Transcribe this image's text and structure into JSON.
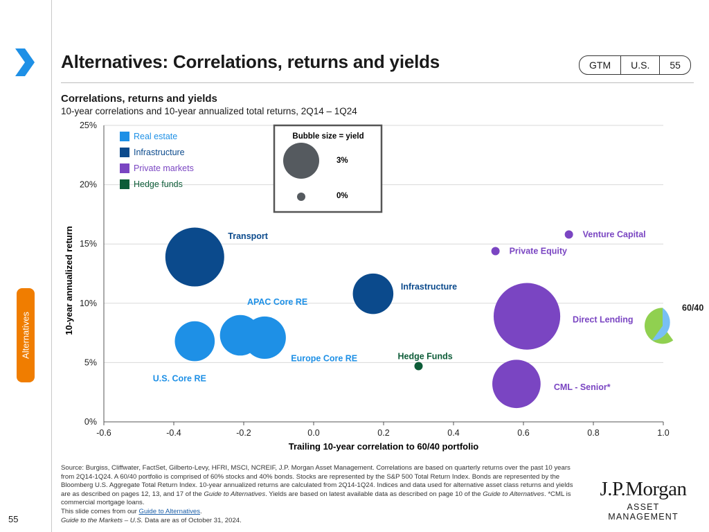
{
  "header": {
    "title": "Alternatives: Correlations, returns and yields",
    "tags": [
      "GTM",
      "U.S.",
      "55"
    ]
  },
  "side_tab": "Alternatives",
  "page_number": "55",
  "logo": {
    "line1": "J.P.Morgan",
    "line2": "ASSET MANAGEMENT"
  },
  "footnote": {
    "text": "Source: Burgiss, Cliffwater, FactSet, Gilberto-Levy, HFRI, MSCI, NCREIF, J.P. Morgan Asset Management. Correlations are based on quarterly returns over the past 10 years from 2Q14-1Q24. A 60/40 portfolio is comprised of 60% stocks and 40% bonds. Stocks are represented by the S&P 500 Total Return Index. Bonds are represented by the Bloomberg U.S. Aggregate Total Return Index. 10-year annualized returns are calculated from 2Q14-1Q24. Indices and data used for alternative asset class returns and yields are as described on pages 12, 13, and 17 of the ",
    "guide_italic": "Guide to Alternatives",
    "text2": ". Yields are based on latest available data as described on page 10 of the ",
    "guide_italic2": "Guide to Alternatives",
    "text3": ". *CML is commercial mortgage loans.",
    "line2_pre": "This slide comes from our ",
    "link": "Guide to Alternatives",
    "line2_post": ".",
    "line3_italic": "Guide to the Markets – U.S.",
    "line3_rest": " Data are as of October 31, 2024."
  },
  "colors": {
    "real_estate": "#1e90e6",
    "infrastructure": "#0b4a8c",
    "private_markets": "#7a45c2",
    "hedge_funds": "#0d5c38",
    "accent_orange": "#f07d00",
    "chevron_blue": "#1e90e6",
    "pie_blue": "#78bff5",
    "pie_green": "#90d050"
  },
  "chart_data": {
    "type": "scatter",
    "title": "Correlations, returns and yields",
    "subtitle": "10-year correlations and 10-year annualized total returns, 2Q14 – 1Q24",
    "xlabel": "Trailing 10-year correlation to 60/40 portfolio",
    "ylabel": "10-year annualized return",
    "xlim": [
      -0.6,
      1.0
    ],
    "ylim": [
      0,
      25
    ],
    "xticks": [
      "-0.6",
      "-0.4",
      "-0.2",
      "0.0",
      "0.2",
      "0.4",
      "0.6",
      "0.8",
      "1.0"
    ],
    "yticks": [
      "0%",
      "5%",
      "10%",
      "15%",
      "20%",
      "25%"
    ],
    "grid": "horizontal",
    "legend": {
      "placement": "top-left",
      "entries": [
        {
          "name": "Real estate",
          "group": "real_estate"
        },
        {
          "name": "Infrastructure",
          "group": "infrastructure"
        },
        {
          "name": "Private markets",
          "group": "private_markets"
        },
        {
          "name": "Hedge funds",
          "group": "hedge_funds"
        }
      ]
    },
    "size_legend": {
      "title": "Bubble size = yield",
      "entries": [
        {
          "label": "3%",
          "yield": 3
        },
        {
          "label": "0%",
          "yield": 0
        }
      ]
    },
    "points": [
      {
        "name": "Transport",
        "group": "infrastructure",
        "x": -0.34,
        "y": 13.9,
        "yield": 6.4
      },
      {
        "name": "Infrastructure",
        "group": "infrastructure",
        "x": 0.17,
        "y": 10.8,
        "yield": 2.6
      },
      {
        "name": "U.S. Core RE",
        "group": "real_estate",
        "x": -0.34,
        "y": 6.8,
        "yield": 2.5
      },
      {
        "name": "APAC Core RE",
        "group": "real_estate",
        "x": -0.21,
        "y": 7.3,
        "yield": 2.6
      },
      {
        "name": "Europe Core RE",
        "group": "real_estate",
        "x": -0.14,
        "y": 7.1,
        "yield": 2.9
      },
      {
        "name": "Hedge Funds",
        "group": "hedge_funds",
        "x": 0.3,
        "y": 4.7,
        "yield": 0
      },
      {
        "name": "Venture Capital",
        "group": "private_markets",
        "x": 0.73,
        "y": 15.8,
        "yield": 0
      },
      {
        "name": "Private Equity",
        "group": "private_markets",
        "x": 0.52,
        "y": 14.4,
        "yield": 0
      },
      {
        "name": "Direct Lending",
        "group": "private_markets",
        "x": 0.61,
        "y": 8.9,
        "yield": 8.5
      },
      {
        "name": "CML - Senior*",
        "group": "private_markets",
        "x": 0.58,
        "y": 3.2,
        "yield": 4.0
      }
    ],
    "reference_pie": {
      "name": "60/40",
      "x": 1.0,
      "y": 8.1,
      "stocks": 60,
      "bonds": 40
    }
  }
}
